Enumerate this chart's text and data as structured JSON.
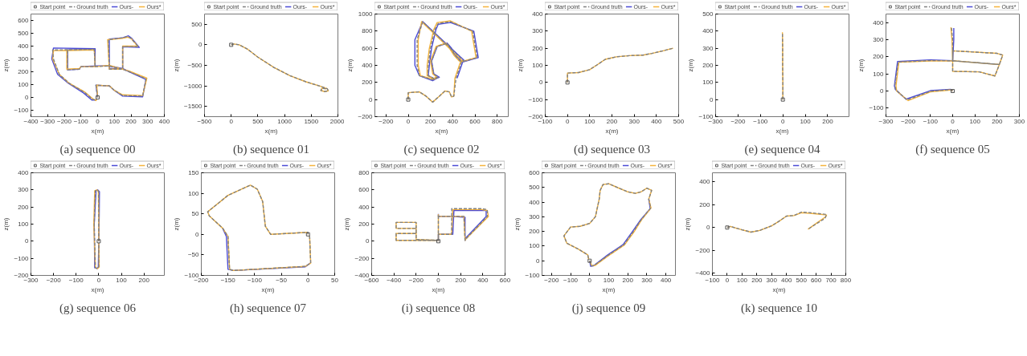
{
  "chart_data": [
    {
      "type": "line",
      "title": "(a) sequence 00",
      "xlabel": "x(m)",
      "ylabel": "z(m)",
      "legend": "top",
      "xlim": [
        -400,
        400
      ],
      "ylim": [
        -150,
        650
      ],
      "xticks": [
        -400,
        -300,
        -200,
        -100,
        0,
        100,
        200,
        300,
        400
      ],
      "yticks": [
        -100,
        0,
        100,
        200,
        300,
        400,
        500,
        600
      ],
      "series": [
        {
          "name": "Start point",
          "type": "scatter",
          "marker": "square",
          "color": "#555555",
          "x": [
            0
          ],
          "values": [
            0
          ]
        },
        {
          "name": "Ground truth",
          "line_style": "dashed",
          "color": "#808080",
          "x": [
            0,
            -10,
            70,
            100,
            150,
            270,
            290,
            190,
            150,
            70,
            65,
            150,
            180,
            200,
            245,
            150,
            150,
            70,
            -15,
            -100,
            -110,
            -180,
            -180,
            -20,
            -15,
            -20,
            -270,
            -265,
            -230,
            -170,
            -80,
            -30,
            -10,
            -5
          ],
          "values": [
            0,
            95,
            90,
            55,
            15,
            10,
            145,
            200,
            220,
            220,
            450,
            465,
            475,
            460,
            395,
            395,
            220,
            245,
            240,
            240,
            220,
            215,
            370,
            375,
            240,
            375,
            370,
            300,
            180,
            110,
            40,
            -15,
            -20,
            -10
          ]
        },
        {
          "name": "Ours-",
          "color": "#4b4bd6",
          "x": [
            0,
            -10,
            70,
            100,
            150,
            270,
            290,
            190,
            150,
            70,
            70,
            150,
            185,
            205,
            250,
            150,
            150,
            70,
            -15,
            -100,
            -110,
            -180,
            -180,
            -15,
            -15,
            -15,
            -265,
            -275,
            -240,
            -175,
            -85,
            -35,
            -10,
            -5
          ],
          "values": [
            0,
            95,
            90,
            55,
            10,
            5,
            140,
            200,
            225,
            225,
            455,
            465,
            480,
            460,
            390,
            395,
            225,
            245,
            245,
            240,
            220,
            215,
            370,
            380,
            240,
            380,
            385,
            300,
            180,
            110,
            35,
            -20,
            -20,
            -10
          ]
        },
        {
          "name": "Ours*",
          "color": "#f5b43c",
          "x": [
            0,
            -5,
            70,
            100,
            150,
            270,
            295,
            190,
            150,
            70,
            60,
            150,
            180,
            200,
            240,
            150,
            150,
            70,
            -15,
            -100,
            -110,
            -185,
            -185,
            -20,
            -15,
            -20,
            -265,
            -270,
            -230,
            -170,
            -80,
            -30,
            -10,
            -5
          ],
          "values": [
            0,
            95,
            90,
            55,
            20,
            15,
            150,
            205,
            220,
            220,
            450,
            460,
            470,
            460,
            400,
            400,
            220,
            250,
            240,
            240,
            225,
            220,
            365,
            370,
            240,
            370,
            365,
            300,
            180,
            110,
            45,
            -10,
            -25,
            -10
          ]
        }
      ]
    },
    {
      "type": "line",
      "title": "(b) sequence 01",
      "xlabel": "x(m)",
      "ylabel": "z(m)",
      "legend": "top",
      "xlim": [
        -500,
        2000
      ],
      "ylim": [
        -1750,
        750
      ],
      "xticks": [
        -500,
        0,
        500,
        1000,
        1500,
        2000
      ],
      "yticks": [
        -1500,
        -1000,
        -500,
        0,
        500
      ],
      "series": [
        {
          "name": "Start point",
          "type": "scatter",
          "marker": "square",
          "color": "#555555",
          "x": [
            0
          ],
          "values": [
            0
          ]
        },
        {
          "name": "Ground truth",
          "line_style": "dashed",
          "color": "#808080",
          "x": [
            0,
            50,
            150,
            300,
            500,
            800,
            1100,
            1400,
            1650,
            1800,
            1820,
            1750,
            1680,
            1700,
            1780
          ],
          "values": [
            0,
            20,
            0,
            -100,
            -300,
            -550,
            -750,
            -900,
            -1000,
            -1070,
            -1120,
            -1140,
            -1110,
            -1060,
            -1070
          ]
        },
        {
          "name": "Ours-",
          "color": "#4b4bd6",
          "x": [
            null,
            null,
            null,
            null,
            null,
            null,
            null,
            null,
            null,
            null,
            null,
            null,
            null,
            null,
            null
          ],
          "values": [
            null,
            null,
            null,
            null,
            null,
            null,
            null,
            null,
            null,
            null,
            null,
            null,
            null,
            null,
            null
          ]
        },
        {
          "name": "Ours*",
          "color": "#f5b43c",
          "x": [
            0,
            50,
            150,
            300,
            500,
            800,
            1100,
            1400,
            1650,
            1800,
            1820,
            1750,
            1680,
            1700,
            1780
          ],
          "values": [
            0,
            20,
            0,
            -100,
            -300,
            -550,
            -750,
            -900,
            -1000,
            -1070,
            -1120,
            -1140,
            -1110,
            -1060,
            -1070
          ]
        }
      ]
    },
    {
      "type": "line",
      "title": "(c) sequence 02",
      "xlabel": "x(m)",
      "ylabel": "z(m)",
      "legend": "top",
      "xlim": [
        -300,
        900
      ],
      "ylim": [
        -200,
        1000
      ],
      "xticks": [
        -200,
        0,
        200,
        400,
        600,
        800
      ],
      "yticks": [
        -200,
        0,
        200,
        400,
        600,
        800,
        1000
      ],
      "series": [
        {
          "name": "Start point",
          "type": "scatter",
          "marker": "square",
          "color": "#555555",
          "x": [
            0
          ],
          "values": [
            0
          ]
        },
        {
          "name": "Ground truth",
          "line_style": "dashed",
          "color": "#808080",
          "x": [
            0,
            0,
            100,
            160,
            220,
            280,
            330,
            370,
            390,
            410,
            430,
            480,
            620,
            580,
            380,
            270,
            240,
            200,
            180,
            180,
            240,
            270,
            230,
            210,
            260,
            350,
            380,
            420,
            470,
            500,
            130,
            80,
            80,
            100,
            220,
            260
          ],
          "values": [
            0,
            80,
            90,
            40,
            -30,
            40,
            100,
            90,
            30,
            40,
            250,
            440,
            490,
            800,
            910,
            890,
            820,
            600,
            400,
            280,
            240,
            260,
            300,
            450,
            620,
            660,
            600,
            520,
            450,
            450,
            910,
            700,
            400,
            280,
            230,
            260
          ]
        },
        {
          "name": "Ours-",
          "color": "#4b4bd6",
          "x": [
            null,
            null,
            null,
            null,
            null,
            null,
            null,
            null,
            null,
            null,
            440,
            490,
            630,
            590,
            380,
            270,
            250,
            210,
            190,
            180,
            240,
            280,
            230,
            210,
            260,
            350,
            390,
            420,
            480,
            510,
            130,
            60,
            60,
            100,
            220,
            260
          ],
          "values": [
            null,
            null,
            null,
            null,
            null,
            null,
            null,
            null,
            null,
            null,
            250,
            440,
            490,
            800,
            900,
            880,
            820,
            600,
            400,
            280,
            240,
            260,
            300,
            450,
            620,
            660,
            600,
            520,
            450,
            450,
            910,
            700,
            400,
            280,
            220,
            250
          ]
        },
        {
          "name": "Ours*",
          "color": "#f5b43c",
          "x": [
            0,
            0,
            100,
            160,
            220,
            280,
            330,
            370,
            390,
            410,
            420,
            470,
            610,
            570,
            380,
            260,
            230,
            190,
            170,
            170,
            240,
            260,
            220,
            200,
            250,
            340,
            370,
            410,
            460,
            490,
            120,
            90,
            90,
            110,
            220,
            250
          ],
          "values": [
            0,
            80,
            90,
            40,
            -30,
            40,
            100,
            90,
            30,
            40,
            250,
            440,
            490,
            800,
            920,
            900,
            820,
            600,
            400,
            280,
            240,
            260,
            300,
            450,
            620,
            660,
            600,
            520,
            450,
            450,
            910,
            700,
            400,
            280,
            240,
            260
          ]
        }
      ]
    },
    {
      "type": "line",
      "title": "(d) sequence 03",
      "xlabel": "x(m)",
      "ylabel": "z(m)",
      "legend": "top",
      "xlim": [
        -100,
        500
      ],
      "ylim": [
        -200,
        400
      ],
      "xticks": [
        -100,
        0,
        100,
        200,
        300,
        400,
        500
      ],
      "yticks": [
        -200,
        -100,
        0,
        100,
        200,
        300,
        400
      ],
      "series": [
        {
          "name": "Start point",
          "type": "scatter",
          "marker": "square",
          "color": "#555555",
          "x": [
            0
          ],
          "values": [
            0
          ]
        },
        {
          "name": "Ground truth",
          "line_style": "dashed",
          "color": "#808080",
          "x": [
            0,
            0,
            50,
            100,
            130,
            170,
            220,
            280,
            340,
            380,
            430,
            475
          ],
          "values": [
            0,
            55,
            58,
            75,
            100,
            135,
            150,
            157,
            160,
            170,
            185,
            200
          ]
        },
        {
          "name": "Ours-",
          "color": "#4b4bd6",
          "x": [
            null,
            null,
            null,
            null,
            null,
            null,
            null,
            null,
            null,
            null,
            null,
            null
          ],
          "values": [
            null,
            null,
            null,
            null,
            null,
            null,
            null,
            null,
            null,
            null,
            null,
            null
          ]
        },
        {
          "name": "Ours*",
          "color": "#f5b43c",
          "x": [
            0,
            0,
            50,
            100,
            130,
            170,
            220,
            280,
            340,
            380,
            430,
            475
          ],
          "values": [
            0,
            55,
            58,
            75,
            100,
            135,
            150,
            157,
            160,
            170,
            185,
            200
          ]
        }
      ]
    },
    {
      "type": "line",
      "title": "(e) sequence 04",
      "xlabel": "x(m)",
      "ylabel": "z(m)",
      "legend": "top",
      "xlim": [
        -300,
        295
      ],
      "ylim": [
        -100,
        500
      ],
      "xticks": [
        -300,
        -200,
        -100,
        0,
        100,
        200
      ],
      "yticks": [
        -100,
        0,
        100,
        200,
        300,
        400,
        500
      ],
      "series": [
        {
          "name": "Start point",
          "type": "scatter",
          "marker": "square",
          "color": "#555555",
          "x": [
            0
          ],
          "values": [
            0
          ]
        },
        {
          "name": "Ground truth",
          "line_style": "dashed",
          "color": "#808080",
          "x": [
            0,
            0,
            -1,
            -1,
            -2
          ],
          "values": [
            0,
            100,
            200,
            300,
            393
          ]
        },
        {
          "name": "Ours-",
          "color": "#4b4bd6",
          "x": [
            null,
            null,
            null,
            null,
            null
          ],
          "values": [
            null,
            null,
            null,
            null,
            null
          ]
        },
        {
          "name": "Ours*",
          "color": "#f5b43c",
          "x": [
            0,
            0,
            -1,
            -1,
            -2
          ],
          "values": [
            0,
            100,
            200,
            300,
            393
          ]
        }
      ]
    },
    {
      "type": "line",
      "title": "(f) sequence 05",
      "xlabel": "x(m)",
      "ylabel": "z(m)",
      "legend": "top",
      "xlim": [
        -300,
        300
      ],
      "ylim": [
        -150,
        450
      ],
      "xticks": [
        -300,
        -200,
        -100,
        0,
        100,
        200,
        300
      ],
      "yticks": [
        -100,
        0,
        100,
        200,
        300,
        400
      ],
      "series": [
        {
          "name": "Start point",
          "type": "scatter",
          "marker": "square",
          "color": "#555555",
          "x": [
            0
          ],
          "values": [
            0
          ]
        },
        {
          "name": "Ground truth",
          "line_style": "dashed",
          "color": "#808080",
          "x": [
            0,
            -10,
            -100,
            -205,
            -255,
            -260,
            -245,
            -100,
            0,
            210,
            225,
            200,
            0,
            0,
            120,
            190,
            210,
            0,
            0,
            -5
          ],
          "values": [
            0,
            8,
            -2,
            -52,
            5,
            30,
            170,
            178,
            177,
            155,
            210,
            220,
            235,
            115,
            112,
            88,
            155,
            177,
            300,
            370
          ]
        },
        {
          "name": "Ours-",
          "color": "#4b4bd6",
          "x": [
            0,
            -10,
            -100,
            -210,
            -258,
            -262,
            -248,
            -100,
            0,
            null,
            null,
            null,
            null,
            null,
            null,
            null,
            null,
            0,
            5,
            5
          ],
          "values": [
            0,
            10,
            2,
            -48,
            10,
            30,
            172,
            182,
            177,
            null,
            null,
            null,
            null,
            null,
            null,
            null,
            null,
            177,
            300,
            368
          ]
        },
        {
          "name": "Ours*",
          "color": "#f5b43c",
          "x": [
            0,
            -10,
            -100,
            -200,
            -252,
            -255,
            -242,
            -100,
            0,
            210,
            225,
            200,
            0,
            0,
            120,
            190,
            210,
            0,
            -3,
            -8
          ],
          "values": [
            0,
            6,
            -5,
            -56,
            0,
            30,
            168,
            176,
            177,
            155,
            210,
            220,
            235,
            115,
            112,
            88,
            155,
            177,
            300,
            372
          ]
        }
      ]
    },
    {
      "type": "line",
      "title": "(g) sequence 06",
      "xlabel": "x(m)",
      "ylabel": "z(m)",
      "legend": "top",
      "xlim": [
        -300,
        290
      ],
      "ylim": [
        -200,
        400
      ],
      "xticks": [
        -300,
        -200,
        -100,
        0,
        100,
        200
      ],
      "yticks": [
        -200,
        -100,
        0,
        100,
        200,
        300,
        400
      ],
      "series": [
        {
          "name": "Start point",
          "type": "scatter",
          "marker": "square",
          "color": "#555555",
          "x": [
            0
          ],
          "values": [
            0
          ]
        },
        {
          "name": "Ground truth",
          "line_style": "dashed",
          "color": "#808080",
          "x": [
            0,
            0,
            0,
            -5,
            -15,
            -20,
            -15,
            -5,
            0,
            0
          ],
          "values": [
            0,
            150,
            290,
            300,
            295,
            100,
            -155,
            -160,
            -150,
            -10
          ]
        },
        {
          "name": "Ours-",
          "color": "#4b4bd6",
          "x": [
            0,
            2,
            3,
            -5,
            -12,
            -20,
            -18,
            -8,
            -2,
            0
          ],
          "values": [
            0,
            150,
            290,
            300,
            295,
            100,
            -155,
            -160,
            -150,
            -10
          ]
        },
        {
          "name": "Ours*",
          "color": "#f5b43c",
          "x": [
            0,
            0,
            -2,
            -8,
            -18,
            -22,
            -15,
            -5,
            2,
            0
          ],
          "values": [
            0,
            150,
            290,
            300,
            295,
            100,
            -155,
            -160,
            -150,
            -10
          ]
        }
      ]
    },
    {
      "type": "line",
      "title": "(h) sequence 07",
      "xlabel": "x(m)",
      "ylabel": "z(m)",
      "legend": "top",
      "xlim": [
        -200,
        50
      ],
      "ylim": [
        -100,
        150
      ],
      "xticks": [
        -200,
        -150,
        -100,
        -50,
        0,
        50
      ],
      "yticks": [
        -100,
        -50,
        0,
        50,
        100,
        150
      ],
      "series": [
        {
          "name": "Start point",
          "type": "scatter",
          "marker": "square",
          "color": "#555555",
          "x": [
            0
          ],
          "values": [
            0
          ]
        },
        {
          "name": "Ground truth",
          "line_style": "dashed",
          "color": "#808080",
          "x": [
            0,
            0,
            -70,
            -80,
            -85,
            -95,
            -108,
            -150,
            -188,
            -185,
            -160,
            -150,
            -147,
            -140,
            -5,
            5,
            3,
            2
          ],
          "values": [
            0,
            5,
            0,
            20,
            80,
            110,
            120,
            95,
            55,
            45,
            15,
            -5,
            -85,
            -88,
            -78,
            -70,
            -5,
            -5
          ]
        },
        {
          "name": "Ours-",
          "color": "#4b4bd6",
          "x": [
            null,
            null,
            null,
            null,
            null,
            null,
            null,
            null,
            null,
            null,
            -160,
            -153,
            -150,
            -140,
            -5,
            4,
            null,
            null
          ],
          "values": [
            null,
            null,
            null,
            null,
            null,
            null,
            null,
            null,
            null,
            null,
            15,
            -5,
            -85,
            -88,
            -79,
            -70,
            null,
            null
          ]
        },
        {
          "name": "Ours*",
          "color": "#f5b43c",
          "x": [
            0,
            0,
            -70,
            -80,
            -85,
            -95,
            -108,
            -150,
            -188,
            -185,
            -160,
            -150,
            -147,
            -140,
            -5,
            5,
            3,
            2
          ],
          "values": [
            0,
            5,
            0,
            20,
            80,
            110,
            120,
            95,
            55,
            45,
            15,
            -5,
            -85,
            -88,
            -78,
            -70,
            -5,
            -5
          ]
        }
      ]
    },
    {
      "type": "line",
      "title": "(i) sequence 08",
      "xlabel": "x(m)",
      "ylabel": "z(m)",
      "legend": "top",
      "xlim": [
        -600,
        600
      ],
      "ylim": [
        -400,
        800
      ],
      "xticks": [
        -600,
        -400,
        -200,
        0,
        200,
        400,
        600
      ],
      "yticks": [
        -400,
        -200,
        0,
        200,
        400,
        600,
        800
      ],
      "series": [
        {
          "name": "Start point",
          "type": "scatter",
          "marker": "square",
          "color": "#555555",
          "x": [
            0
          ],
          "values": [
            0
          ]
        },
        {
          "name": "Ground truth",
          "line_style": "dashed",
          "color": "#808080",
          "x": [
            0,
            0,
            120,
            120,
            390,
            440,
            440,
            250,
            240,
            230,
            120,
            0,
            0,
            0,
            -200,
            -200,
            -380,
            -380,
            -200,
            -200,
            -380,
            -380,
            -200,
            0
          ],
          "values": [
            0,
            80,
            80,
            380,
            380,
            370,
            290,
            30,
            10,
            290,
            290,
            290,
            310,
            10,
            20,
            220,
            220,
            150,
            150,
            90,
            90,
            10,
            10,
            10
          ]
        },
        {
          "name": "Ours-",
          "color": "#4b4bd6",
          "x": [
            0,
            0,
            130,
            140,
            390,
            430,
            430,
            240,
            240,
            240,
            120,
            0,
            0,
            null,
            null,
            null,
            null,
            null,
            null,
            null,
            null,
            null,
            null,
            null
          ],
          "values": [
            0,
            80,
            80,
            360,
            360,
            360,
            290,
            30,
            10,
            280,
            290,
            290,
            320,
            null,
            null,
            null,
            null,
            null,
            null,
            null,
            null,
            null,
            null,
            null
          ]
        },
        {
          "name": "Ours*",
          "color": "#f5b43c",
          "x": [
            0,
            0,
            120,
            130,
            390,
            440,
            450,
            250,
            240,
            230,
            120,
            0,
            0,
            0,
            -200,
            -200,
            -380,
            -380,
            -200,
            -200,
            -380,
            -380,
            -200,
            0
          ],
          "values": [
            0,
            80,
            80,
            370,
            370,
            360,
            290,
            30,
            10,
            290,
            290,
            290,
            310,
            10,
            20,
            220,
            220,
            150,
            150,
            90,
            90,
            10,
            10,
            10
          ]
        }
      ]
    },
    {
      "type": "line",
      "title": "(j) sequence 09",
      "xlabel": "x(m)",
      "ylabel": "z(m)",
      "legend": "top",
      "xlim": [
        -250,
        450
      ],
      "ylim": [
        -100,
        600
      ],
      "xticks": [
        -200,
        -100,
        0,
        100,
        200,
        300,
        400
      ],
      "yticks": [
        -100,
        0,
        100,
        200,
        300,
        400,
        500,
        600
      ],
      "series": [
        {
          "name": "Start point",
          "type": "scatter",
          "marker": "square",
          "color": "#555555",
          "x": [
            0
          ],
          "values": [
            0
          ]
        },
        {
          "name": "Ground truth",
          "line_style": "dashed",
          "color": "#808080",
          "x": [
            0,
            10,
            25,
            100,
            180,
            230,
            270,
            320,
            310,
            325,
            300,
            270,
            240,
            200,
            100,
            70,
            55,
            50,
            40,
            30,
            0,
            -50,
            -100,
            -135,
            -120,
            -60,
            -10,
            -5
          ],
          "values": [
            0,
            -35,
            -30,
            40,
            110,
            200,
            280,
            360,
            420,
            480,
            495,
            470,
            460,
            470,
            525,
            520,
            480,
            420,
            360,
            300,
            255,
            235,
            230,
            170,
            120,
            80,
            40,
            10
          ]
        },
        {
          "name": "Ours-",
          "color": "#4b4bd6",
          "x": [
            0,
            5,
            20,
            95,
            175,
            225,
            268,
            318,
            310,
            null,
            null,
            null,
            null,
            null,
            null,
            null,
            null,
            null,
            null,
            null,
            null,
            null,
            null,
            null,
            null,
            null,
            null,
            null
          ],
          "values": [
            0,
            -38,
            -35,
            40,
            110,
            200,
            280,
            355,
            420,
            null,
            null,
            null,
            null,
            null,
            null,
            null,
            null,
            null,
            null,
            null,
            null,
            null,
            null,
            null,
            null,
            null,
            null,
            null
          ]
        },
        {
          "name": "Ours*",
          "color": "#f5b43c",
          "x": [
            0,
            12,
            28,
            103,
            183,
            233,
            272,
            322,
            310,
            325,
            300,
            270,
            240,
            200,
            100,
            70,
            55,
            50,
            40,
            30,
            0,
            -50,
            -100,
            -135,
            -120,
            -60,
            -10,
            -5
          ],
          "values": [
            0,
            -35,
            -32,
            38,
            108,
            198,
            278,
            360,
            420,
            480,
            495,
            470,
            460,
            470,
            525,
            520,
            480,
            420,
            360,
            300,
            255,
            235,
            230,
            170,
            120,
            80,
            40,
            10
          ]
        }
      ]
    },
    {
      "type": "line",
      "title": "(k) sequence 10",
      "xlabel": "x(m)",
      "ylabel": "z(m)",
      "legend": "top",
      "xlim": [
        -100,
        800
      ],
      "ylim": [
        -420,
        480
      ],
      "xticks": [
        -100,
        0,
        100,
        200,
        300,
        400,
        500,
        600,
        700,
        800
      ],
      "yticks": [
        -400,
        -200,
        0,
        200,
        400
      ],
      "series": [
        {
          "name": "Start point",
          "type": "scatter",
          "marker": "square",
          "color": "#555555",
          "x": [
            0
          ],
          "values": [
            0
          ]
        },
        {
          "name": "Ground truth",
          "line_style": "dashed",
          "color": "#808080",
          "x": [
            0,
            20,
            100,
            160,
            220,
            300,
            350,
            400,
            450,
            500,
            560,
            670,
            660,
            610,
            545
          ],
          "values": [
            0,
            10,
            -20,
            -40,
            -25,
            15,
            55,
            100,
            105,
            135,
            130,
            115,
            80,
            40,
            -15
          ]
        },
        {
          "name": "Ours-",
          "color": "#4b4bd6",
          "x": [
            null,
            null,
            null,
            null,
            null,
            null,
            null,
            null,
            null,
            null,
            null,
            null,
            null,
            null,
            null
          ],
          "values": [
            null,
            null,
            null,
            null,
            null,
            null,
            null,
            null,
            null,
            null,
            null,
            null,
            null,
            null,
            null
          ]
        },
        {
          "name": "Ours*",
          "color": "#f5b43c",
          "x": [
            0,
            20,
            100,
            160,
            220,
            300,
            350,
            400,
            450,
            500,
            560,
            670,
            665,
            610,
            545
          ],
          "values": [
            0,
            10,
            -20,
            -40,
            -25,
            15,
            55,
            100,
            105,
            130,
            125,
            110,
            95,
            45,
            -15
          ]
        }
      ]
    }
  ]
}
